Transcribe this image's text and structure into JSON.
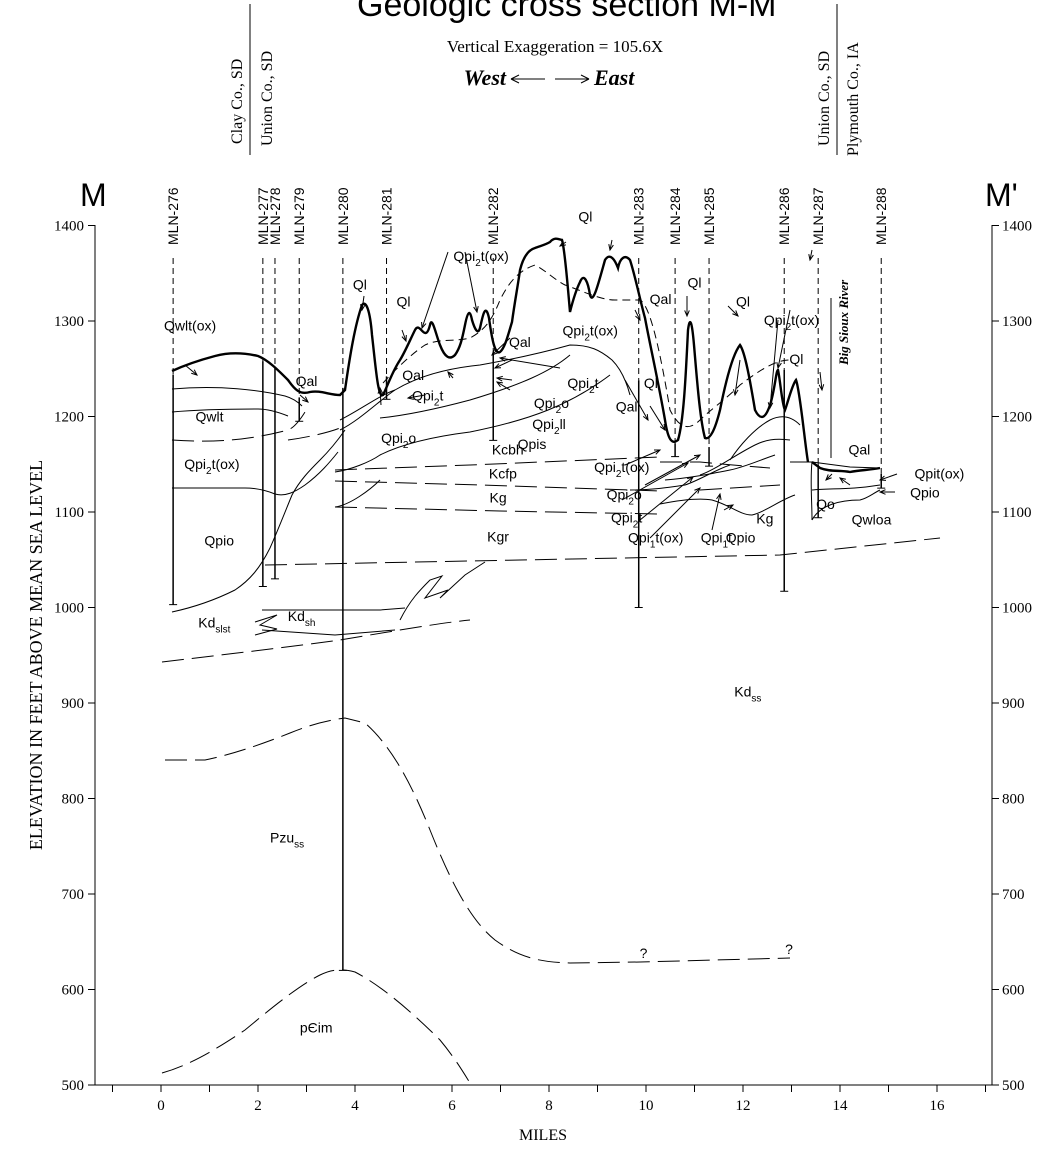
{
  "title": "Geologic cross section M-M'",
  "vertical_exaggeration": "Vertical Exaggeration = 105.6X",
  "direction": {
    "west": "West",
    "east": "East"
  },
  "section_end_labels": {
    "left": "M",
    "right": "M'"
  },
  "county_lines": {
    "left": {
      "top": "Clay Co., SD",
      "bottom": "Union Co., SD"
    },
    "right": {
      "top": "Union Co., SD",
      "bottom": "Plymouth Co., IA"
    }
  },
  "x_axis": {
    "label": "MILES",
    "ticks": [
      "0",
      "2",
      "4",
      "6",
      "8",
      "10",
      "12",
      "14",
      "16"
    ],
    "range": [
      -1.5,
      17.3
    ]
  },
  "y_axis": {
    "label": "ELEVATION IN FEET ABOVE MEAN SEA LEVEL",
    "ticks": [
      "1400",
      "1300",
      "1200",
      "1100",
      "1000",
      "900",
      "800",
      "700",
      "600",
      "500"
    ],
    "range": [
      500,
      1400
    ]
  },
  "river_label": "Big Sioux River",
  "wells": [
    {
      "name": "MLN-276",
      "mile": 0.25,
      "top": 1244,
      "bottom": 1003
    },
    {
      "name": "MLN-277",
      "mile": 2.1,
      "top": 1258,
      "bottom": 1022
    },
    {
      "name": "MLN-278",
      "mile": 2.35,
      "top": 1252,
      "bottom": 1030
    },
    {
      "name": "MLN-279",
      "mile": 2.85,
      "top": 1220,
      "bottom": 1195
    },
    {
      "name": "MLN-280",
      "mile": 3.75,
      "top": 1230,
      "bottom": 620
    },
    {
      "name": "MLN-281",
      "mile": 4.65,
      "top": 1242,
      "bottom": 1218
    },
    {
      "name": "MLN-282",
      "mile": 6.85,
      "top": 1268,
      "bottom": 1175
    },
    {
      "name": "MLN-283",
      "mile": 9.85,
      "top": 1238,
      "bottom": 1000
    },
    {
      "name": "MLN-284",
      "mile": 10.6,
      "top": 1172,
      "bottom": 1158
    },
    {
      "name": "MLN-285",
      "mile": 11.3,
      "top": 1168,
      "bottom": 1148
    },
    {
      "name": "MLN-286",
      "mile": 12.85,
      "top": 1249,
      "bottom": 1017
    },
    {
      "name": "MLN-287",
      "mile": 13.55,
      "top": 1150,
      "bottom": 1094
    },
    {
      "name": "MLN-288",
      "mile": 14.85,
      "top": 1140,
      "bottom": 1125
    }
  ],
  "unit_labels": [
    {
      "text": "Qwlt(ox)",
      "mile": 0.6,
      "elev": 1290
    },
    {
      "text": "Qwlt",
      "mile": 1.0,
      "elev": 1195
    },
    {
      "text": "Qpi2t(ox)",
      "mile": 1.05,
      "elev": 1145
    },
    {
      "text": "Qpio",
      "mile": 1.2,
      "elev": 1065
    },
    {
      "text": "Qal",
      "mile": 3.0,
      "elev": 1232
    },
    {
      "text": "Ql",
      "mile": 4.1,
      "elev": 1333
    },
    {
      "text": "Ql",
      "mile": 5.0,
      "elev": 1315
    },
    {
      "text": "Qpi2t(ox)",
      "mile": 6.6,
      "elev": 1363
    },
    {
      "text": "Qal",
      "mile": 5.2,
      "elev": 1238
    },
    {
      "text": "Qpi2t",
      "mile": 5.5,
      "elev": 1217
    },
    {
      "text": "Qpi2o",
      "mile": 4.9,
      "elev": 1172
    },
    {
      "text": "Kcbh",
      "mile": 7.15,
      "elev": 1160
    },
    {
      "text": "Kcfp",
      "mile": 7.05,
      "elev": 1135
    },
    {
      "text": "Kg",
      "mile": 6.95,
      "elev": 1110
    },
    {
      "text": "Kgr",
      "mile": 6.95,
      "elev": 1069
    },
    {
      "text": "Qal",
      "mile": 7.4,
      "elev": 1273
    },
    {
      "text": "Qpi2t(ox)",
      "mile": 8.85,
      "elev": 1285
    },
    {
      "text": "Qpi2t",
      "mile": 8.7,
      "elev": 1230
    },
    {
      "text": "Qpi2o",
      "mile": 8.05,
      "elev": 1209
    },
    {
      "text": "Qpi2ll",
      "mile": 8.0,
      "elev": 1187
    },
    {
      "text": "Qpis",
      "mile": 7.65,
      "elev": 1166
    },
    {
      "text": "Ql",
      "mile": 8.75,
      "elev": 1404
    },
    {
      "text": "Qal",
      "mile": 10.3,
      "elev": 1318
    },
    {
      "text": "Ql",
      "mile": 11.0,
      "elev": 1335
    },
    {
      "text": "Ql",
      "mile": 12.0,
      "elev": 1315
    },
    {
      "text": "Qpi2t(ox)",
      "mile": 13.0,
      "elev": 1296
    },
    {
      "text": "Ql",
      "mile": 10.1,
      "elev": 1230
    },
    {
      "text": "Qal",
      "mile": 9.6,
      "elev": 1205
    },
    {
      "text": "Ql",
      "mile": 13.1,
      "elev": 1255
    },
    {
      "text": "Qpi2t(ox)",
      "mile": 9.5,
      "elev": 1142
    },
    {
      "text": "Qpi2o",
      "mile": 9.55,
      "elev": 1113
    },
    {
      "text": "Qpi2t",
      "mile": 9.6,
      "elev": 1089
    },
    {
      "text": "Qpi1t(ox)",
      "mile": 10.2,
      "elev": 1068
    },
    {
      "text": "Qpi1t",
      "mile": 11.45,
      "elev": 1068
    },
    {
      "text": "Kg",
      "mile": 12.45,
      "elev": 1088
    },
    {
      "text": "Qpio",
      "mile": 11.95,
      "elev": 1068
    },
    {
      "text": "Qal",
      "mile": 14.4,
      "elev": 1160
    },
    {
      "text": "Qpit(ox)",
      "mile": 16.05,
      "elev": 1135
    },
    {
      "text": "Qpio",
      "mile": 15.75,
      "elev": 1115
    },
    {
      "text": "Qo",
      "mile": 13.7,
      "elev": 1103
    },
    {
      "text": "Qwloa",
      "mile": 14.65,
      "elev": 1087
    },
    {
      "text": "Kdslst",
      "mile": 1.1,
      "elev": 979
    },
    {
      "text": "Kdsh",
      "mile": 2.9,
      "elev": 986
    },
    {
      "text": "Kdss",
      "mile": 12.1,
      "elev": 907
    },
    {
      "text": "Pzuss",
      "mile": 2.6,
      "elev": 754
    },
    {
      "text": "pЄim",
      "mile": 3.2,
      "elev": 555
    },
    {
      "text": "?",
      "mile": 9.95,
      "elev": 633
    },
    {
      "text": "?",
      "mile": 12.95,
      "elev": 637
    }
  ]
}
